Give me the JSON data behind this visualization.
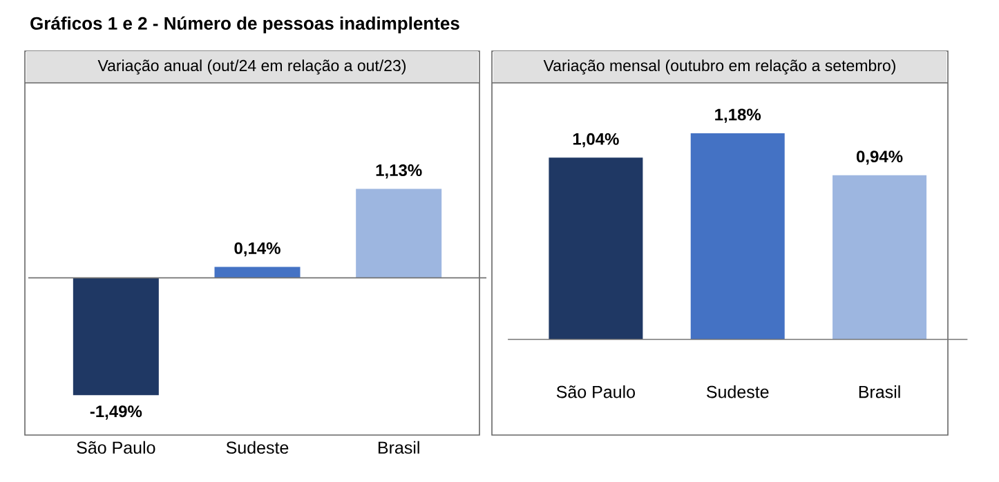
{
  "chart_data": [
    {
      "type": "bar",
      "title": "Gráficos 1 e 2 - Número de pessoas inadimplentes",
      "subtitle": "Variação anual (out/24 em relação a out/23)",
      "categories": [
        "São Paulo",
        "Sudeste",
        "Brasil"
      ],
      "values": [
        -1.49,
        0.14,
        1.13
      ],
      "colors": [
        "#1f3864",
        "#4472c4",
        "#9db6e0"
      ],
      "value_labels": [
        "-1,49%",
        "0,14%",
        "1,13%"
      ]
    },
    {
      "type": "bar",
      "subtitle": "Variação mensal (outubro em relação a setembro)",
      "categories": [
        "São Paulo",
        "Sudeste",
        "Brasil"
      ],
      "values": [
        1.04,
        1.18,
        0.94
      ],
      "colors": [
        "#1f3864",
        "#4472c4",
        "#9db6e0"
      ],
      "value_labels": [
        "1,04%",
        "1,18%",
        "0,94%"
      ]
    }
  ]
}
